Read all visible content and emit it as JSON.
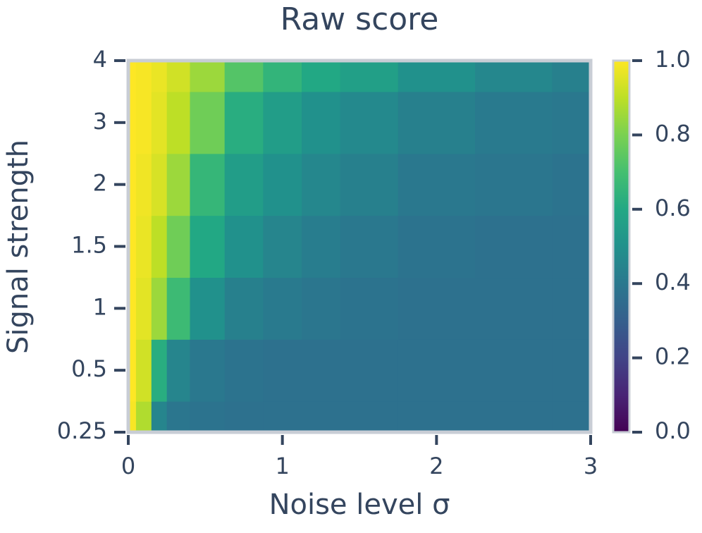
{
  "chart_data": {
    "type": "heatmap",
    "title": "Raw score",
    "x_label": "Noise level σ",
    "y_label": "Signal strength",
    "x": [
      0,
      0.1,
      0.2,
      0.3,
      0.5,
      0.75,
      1,
      1.25,
      1.5,
      2,
      2.5,
      3
    ],
    "y": [
      0.25,
      0.5,
      1,
      1.5,
      2,
      3,
      4
    ],
    "z": [
      [
        0.99,
        0.88,
        0.45,
        0.39,
        0.38,
        0.37,
        0.37,
        0.37,
        0.37,
        0.37,
        0.37,
        0.37
      ],
      [
        1.0,
        0.93,
        0.62,
        0.45,
        0.4,
        0.38,
        0.37,
        0.37,
        0.37,
        0.37,
        0.37,
        0.37
      ],
      [
        1.0,
        0.96,
        0.85,
        0.68,
        0.5,
        0.43,
        0.41,
        0.39,
        0.38,
        0.37,
        0.37,
        0.37
      ],
      [
        1.0,
        0.97,
        0.9,
        0.78,
        0.6,
        0.5,
        0.45,
        0.42,
        0.4,
        0.38,
        0.37,
        0.37
      ],
      [
        1.0,
        0.98,
        0.94,
        0.85,
        0.66,
        0.55,
        0.5,
        0.46,
        0.43,
        0.4,
        0.39,
        0.38
      ],
      [
        1.0,
        0.99,
        0.96,
        0.9,
        0.78,
        0.62,
        0.55,
        0.5,
        0.47,
        0.43,
        0.41,
        0.4
      ],
      [
        1.0,
        0.99,
        0.97,
        0.93,
        0.85,
        0.73,
        0.65,
        0.6,
        0.56,
        0.5,
        0.46,
        0.43
      ]
    ],
    "xlim": [
      0,
      3
    ],
    "xticks": [
      0,
      1,
      2,
      3
    ],
    "colormap": "viridis",
    "clim": [
      0,
      1
    ],
    "cticks": [
      {
        "value": 0,
        "label": "0.0"
      },
      0.2,
      0.4,
      0.6,
      0.8,
      {
        "value": 1,
        "label": "1.0"
      }
    ]
  }
}
